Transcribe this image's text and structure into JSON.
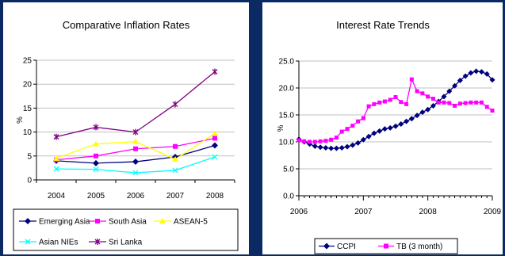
{
  "chart_data": [
    {
      "type": "line",
      "title": "Comparative Inflation Rates",
      "xlabel": "",
      "ylabel": "%",
      "categories": [
        "2004",
        "2005",
        "2006",
        "2007",
        "2008"
      ],
      "ylim": [
        0,
        25
      ],
      "yticks": [
        "0",
        "5",
        "10",
        "15",
        "20",
        "25"
      ],
      "grid": "horizontal",
      "legend": "bottom",
      "series": [
        {
          "name": "Emerging Asia",
          "values": [
            4.0,
            3.5,
            3.8,
            4.8,
            7.2
          ],
          "color": "#000080",
          "marker": "diamond"
        },
        {
          "name": "South Asia",
          "values": [
            4.2,
            5.0,
            6.5,
            7.0,
            8.7
          ],
          "color": "#ff00ff",
          "marker": "square"
        },
        {
          "name": "ASEAN-5",
          "values": [
            4.5,
            7.5,
            8.0,
            4.3,
            9.7
          ],
          "color": "#ffff00",
          "marker": "triangle"
        },
        {
          "name": "Asian NIEs",
          "values": [
            2.3,
            2.2,
            1.5,
            2.0,
            4.8
          ],
          "color": "#00ffff",
          "marker": "x"
        },
        {
          "name": "Sri Lanka",
          "values": [
            9.0,
            11.0,
            10.0,
            15.8,
            22.6
          ],
          "color": "#800080",
          "marker": "star"
        }
      ]
    },
    {
      "type": "line",
      "title": "Interest Rate Trends",
      "xlabel": "",
      "ylabel": "%",
      "x_ticks": [
        "2006",
        "2007",
        "2008",
        "2009"
      ],
      "ylim": [
        0,
        25
      ],
      "yticks": [
        "0.0",
        "5.0",
        "10.0",
        "15.0",
        "20.0",
        "25.0"
      ],
      "grid": "horizontal",
      "legend": "bottom",
      "series": [
        {
          "name": "CCPI",
          "color": "#000080",
          "marker": "diamond",
          "values": [
            10.5,
            10.0,
            9.6,
            9.2,
            9.0,
            8.9,
            8.8,
            8.8,
            8.9,
            9.1,
            9.4,
            9.8,
            10.4,
            11.0,
            11.6,
            12.0,
            12.4,
            12.6,
            12.9,
            13.3,
            13.8,
            14.3,
            14.9,
            15.5,
            16.0,
            16.7,
            17.5,
            18.4,
            19.4,
            20.4,
            21.4,
            22.2,
            22.8,
            23.1,
            23.0,
            22.6,
            21.5
          ]
        },
        {
          "name": "TB (3 month)",
          "color": "#ff00ff",
          "marker": "square",
          "values": [
            10.3,
            10.1,
            10.0,
            10.0,
            10.1,
            10.2,
            10.4,
            10.8,
            11.9,
            12.4,
            13.0,
            13.8,
            14.4,
            16.6,
            17.0,
            17.3,
            17.5,
            17.8,
            18.3,
            17.4,
            17.0,
            21.6,
            19.4,
            19.0,
            18.4,
            18.0,
            17.3,
            17.3,
            17.2,
            16.7,
            17.1,
            17.2,
            17.3,
            17.3,
            17.3,
            16.5,
            15.8
          ]
        }
      ]
    }
  ]
}
